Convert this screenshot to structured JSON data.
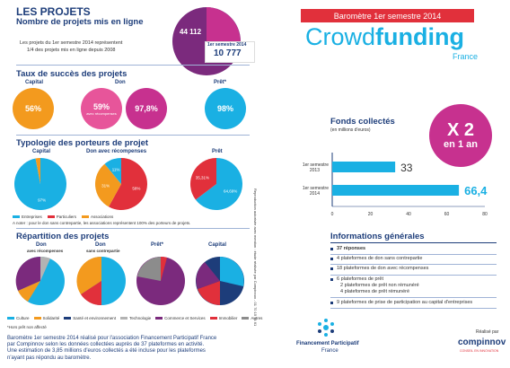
{
  "left": {
    "title": "LES PROJETS",
    "nb_title": "Nombre de projets mis en ligne",
    "nb_text_1": "Les projets du 1er semestre 2014 représentent",
    "nb_text_2": "1/4 des projets mis en ligne depuis 2008",
    "total": "44 112",
    "sem_label": "1er semestre 2014",
    "sem_value": "10 777",
    "taux_title": "Taux de succès des projets",
    "capital": "Capital",
    "don": "Don",
    "pret": "Prêt*",
    "capital_rate": "56%",
    "don_rate_a": "59%",
    "don_rate_a_sub": "avec récompenses",
    "don_rate_b": "97,8%",
    "pret_rate": "98%",
    "typo_title": "Typologie des porteurs de projet",
    "typo_capital": "Capital",
    "typo_don": "Don avec récompenses",
    "typo_pret": "Prêt",
    "typo_legend": [
      "Entreprises",
      "Particuliers",
      "Associations"
    ],
    "typo_note": "A noter : pour le don sans contrepartie, les associations représentent 100% des porteurs de projets.",
    "rep_title": "Répartition des projets",
    "rep_don_a": "Don",
    "rep_don_a_sub": "avec récompenses",
    "rep_don_b": "Don",
    "rep_don_b_sub": "sans contrepartie",
    "rep_pret": "Prêt*",
    "rep_capital": "Capital",
    "rep_legend": [
      "Culture",
      "Solidarité",
      "Santé et environnement",
      "Technologie",
      "Commerce et Services",
      "Immobilier",
      "Autres"
    ],
    "note_pret": "*Hors prêt non affecté",
    "footer_1": "Baromètre 1er semestre 2014 réalisé pour l'association Financement Participatif France",
    "footer_2": "par Compinnov selon les données collectées auprès de 37 plateformes en activité.",
    "footer_3": "Une estimation de 3,85 millions d'euros collectés a été incluse pour les plateformes",
    "footer_4": "n'ayant pas répondu au baromètre.",
    "vertical": "Reproduction autorisée avec mention : étude réalisée par Compinnov - 01 70 15 14 61"
  },
  "right": {
    "banner": "Baromètre 1er semestre 2014",
    "brand_a": "Crowd",
    "brand_b": "funding",
    "brand_c": "France",
    "fonds_title": "Fonds collectés",
    "fonds_unit": "(en millions d'euros)",
    "x2_a": "X 2",
    "x2_b": "en 1 an",
    "info_title": "Informations générales",
    "info_items": [
      "37 réponses",
      "4  plateformes de don sans contrepartie",
      "18  plateformes de don avec récompenses",
      "6  plateformes de prêt",
      "2 plateformes de prêt non rémunéré",
      "4 plateformes de prêt rémunéré",
      "9  plateformes de prise de participation au capital d'entreprises"
    ],
    "fpf_a": "Financement Participatif",
    "fpf_b": "France",
    "realise": "Réalisé par",
    "compinnov": "compinnov",
    "compinnov_sub": "CONSEIL EN INNOVATION"
  },
  "colors": {
    "navy": "#1d3d7a",
    "cyan": "#1ab0e3",
    "orange": "#f39a1e",
    "red": "#e1303b",
    "purple": "#7b2a7d",
    "magenta": "#c7318f",
    "pink": "#e7559a"
  },
  "chart_data": [
    {
      "type": "bar",
      "title": "Fonds collectés",
      "ylabel": "(en millions d'euros)",
      "orientation": "horizontal",
      "categories": [
        "1er semestre 2013",
        "1er semestre 2014"
      ],
      "values": [
        33,
        66.4
      ],
      "value_labels": [
        "33",
        "66,4"
      ],
      "xlim": [
        0,
        80
      ],
      "ticks": [
        "0",
        "20",
        "40",
        "60",
        "80"
      ]
    },
    {
      "type": "pie",
      "title": "Capital",
      "series": [
        {
          "values": [
            97,
            3
          ],
          "labels": [
            "97%",
            ""
          ]
        }
      ]
    },
    {
      "type": "pie",
      "title": "Don avec récompenses",
      "series": [
        {
          "values": [
            58,
            31,
            11
          ],
          "labels": [
            "58%",
            "31%",
            "11%"
          ]
        }
      ]
    },
    {
      "type": "pie",
      "title": "Prêt",
      "series": [
        {
          "values": [
            64.69,
            35.31
          ],
          "labels": [
            "64,69%",
            "35,31%"
          ]
        }
      ]
    }
  ]
}
